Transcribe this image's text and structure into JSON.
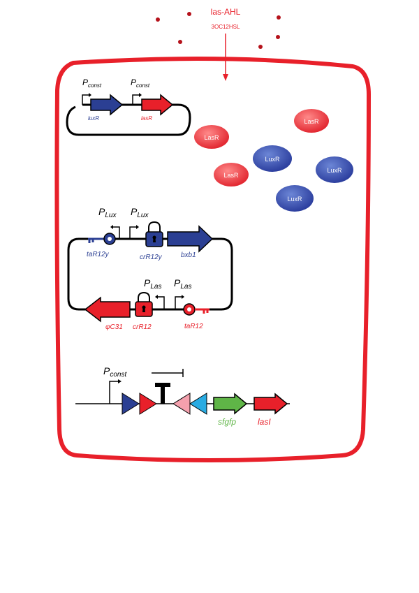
{
  "signal": {
    "name": "las-AHL",
    "molecule": "3OC12HSL"
  },
  "plasmid_regulators": {
    "promoter_1": {
      "main": "P",
      "sub": "const"
    },
    "promoter_2": {
      "main": "P",
      "sub": "const"
    },
    "gene_1": "luxR",
    "gene_2": "lasR"
  },
  "proteins": {
    "lasr": "LasR",
    "luxr": "LuxR"
  },
  "plasmid_switch": {
    "promoter_lux_1": {
      "main": "P",
      "sub": "Lux"
    },
    "promoter_lux_2": {
      "main": "P",
      "sub": "Lux"
    },
    "promoter_las_1": {
      "main": "P",
      "sub": "Las"
    },
    "promoter_las_2": {
      "main": "P",
      "sub": "Las"
    },
    "tar_blue": "taR12y",
    "cr_blue": "crR12y",
    "gene_blue": "bxb1",
    "gene_red": "φC31",
    "cr_red": "crR12",
    "tar_red": "taR12"
  },
  "reporter": {
    "promoter": {
      "main": "P",
      "sub": "const"
    },
    "gene_green": "sfgfp",
    "gene_red": "lasI"
  },
  "colors": {
    "red": "#e8202a",
    "blue": "#2b3f93",
    "green": "#5fb547",
    "pink": "#f4a0ad",
    "cyan": "#29abe2",
    "dark_red": "#b5121b"
  }
}
